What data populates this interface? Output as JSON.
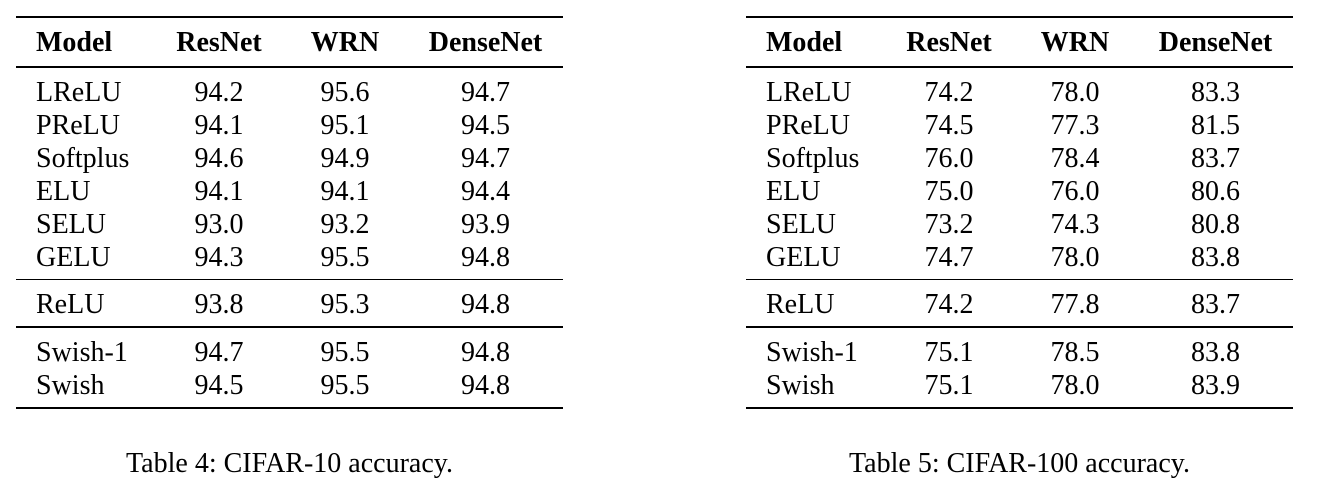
{
  "tables": [
    {
      "columns": [
        "Model",
        "ResNet",
        "WRN",
        "DenseNet"
      ],
      "groups": [
        [
          [
            "LReLU",
            "94.2",
            "95.6",
            "94.7"
          ],
          [
            "PReLU",
            "94.1",
            "95.1",
            "94.5"
          ],
          [
            "Softplus",
            "94.6",
            "94.9",
            "94.7"
          ],
          [
            "ELU",
            "94.1",
            "94.1",
            "94.4"
          ],
          [
            "SELU",
            "93.0",
            "93.2",
            "93.9"
          ],
          [
            "GELU",
            "94.3",
            "95.5",
            "94.8"
          ]
        ],
        [
          [
            "ReLU",
            "93.8",
            "95.3",
            "94.8"
          ]
        ],
        [
          [
            "Swish-1",
            "94.7",
            "95.5",
            "94.8"
          ],
          [
            "Swish",
            "94.5",
            "95.5",
            "94.8"
          ]
        ]
      ],
      "caption": "Table 4: CIFAR-10 accuracy."
    },
    {
      "columns": [
        "Model",
        "ResNet",
        "WRN",
        "DenseNet"
      ],
      "groups": [
        [
          [
            "LReLU",
            "74.2",
            "78.0",
            "83.3"
          ],
          [
            "PReLU",
            "74.5",
            "77.3",
            "81.5"
          ],
          [
            "Softplus",
            "76.0",
            "78.4",
            "83.7"
          ],
          [
            "ELU",
            "75.0",
            "76.0",
            "80.6"
          ],
          [
            "SELU",
            "73.2",
            "74.3",
            "80.8"
          ],
          [
            "GELU",
            "74.7",
            "78.0",
            "83.8"
          ]
        ],
        [
          [
            "ReLU",
            "74.2",
            "77.8",
            "83.7"
          ]
        ],
        [
          [
            "Swish-1",
            "75.1",
            "78.5",
            "83.8"
          ],
          [
            "Swish",
            "75.1",
            "78.0",
            "83.9"
          ]
        ]
      ],
      "caption": "Table 5: CIFAR-100 accuracy."
    }
  ]
}
